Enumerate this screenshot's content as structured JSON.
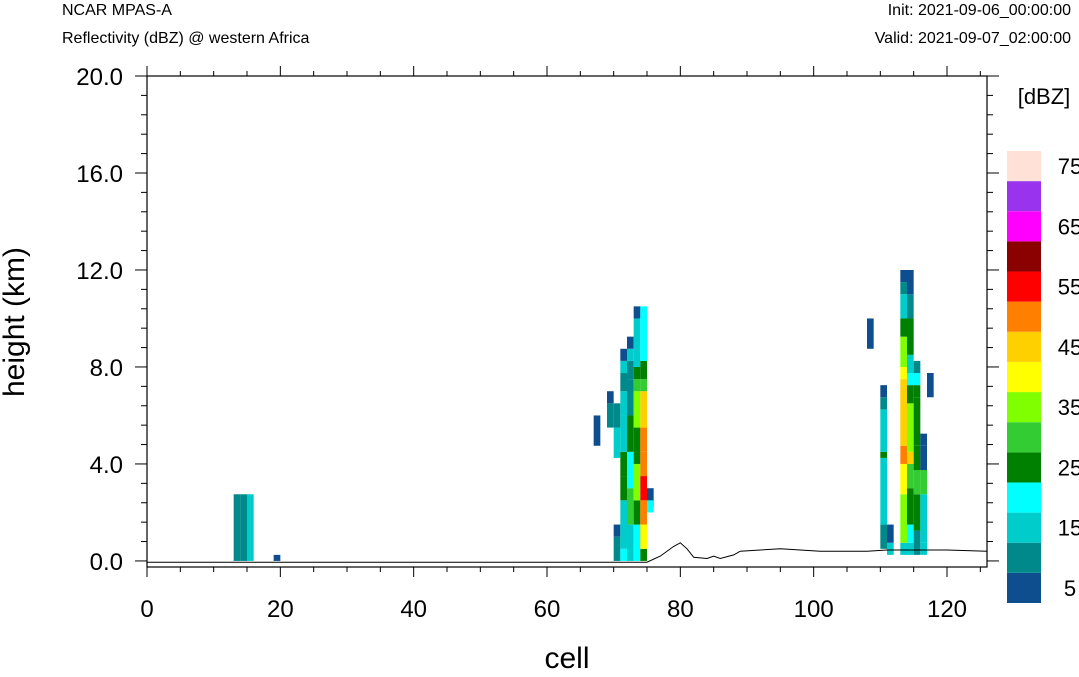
{
  "header": {
    "model": "NCAR MPAS-A",
    "field": "Reflectivity (dBZ) @ western Africa",
    "init": "Init: 2021-09-06_00:00:00",
    "valid": "Valid: 2021-09-07_02:00:00"
  },
  "chart_data": {
    "type": "heatmap",
    "xlabel": "cell",
    "ylabel": "height (km)",
    "xlim": [
      0,
      126
    ],
    "ylim": [
      -0.25,
      20.0
    ],
    "x_ticks": [
      "0",
      "20",
      "40",
      "60",
      "80",
      "100",
      "120"
    ],
    "y_ticks": [
      "0.0",
      "4.0",
      "8.0",
      "12.0",
      "16.0",
      "20.0"
    ],
    "colorbar": {
      "title": "[dBZ]",
      "levels": [
        5,
        10,
        15,
        20,
        25,
        30,
        35,
        40,
        45,
        50,
        55,
        60,
        65,
        70,
        75
      ],
      "labels": [
        "5",
        "15",
        "25",
        "35",
        "45",
        "55",
        "65",
        "75"
      ],
      "colors": [
        "#0e4e8e",
        "#00898a",
        "#00cccc",
        "#00ffff",
        "#008000",
        "#33cc33",
        "#80ff00",
        "#ffff00",
        "#ffd000",
        "#ff8000",
        "#ff0000",
        "#8b0000",
        "#ff00ff",
        "#9933ee",
        "#ffe1d8"
      ]
    },
    "columns": [
      {
        "x": 13,
        "cells": [
          [
            0,
            2.75,
            10
          ]
        ]
      },
      {
        "x": 14,
        "cells": [
          [
            0,
            2.75,
            10
          ]
        ]
      },
      {
        "x": 15,
        "cells": [
          [
            0,
            2.75,
            15
          ]
        ]
      },
      {
        "x": 19,
        "cells": [
          [
            0,
            0.25,
            5
          ]
        ]
      },
      {
        "x": 67,
        "cells": [
          [
            4.75,
            6.0,
            5
          ]
        ]
      },
      {
        "x": 69,
        "cells": [
          [
            5.5,
            6.5,
            10
          ],
          [
            6.5,
            7.0,
            5
          ]
        ]
      },
      {
        "x": 70,
        "cells": [
          [
            0,
            1.0,
            10
          ],
          [
            1.0,
            1.5,
            5
          ],
          [
            4.25,
            5.5,
            15
          ],
          [
            5.5,
            6.5,
            10
          ]
        ]
      },
      {
        "x": 71,
        "cells": [
          [
            0,
            0.5,
            20
          ],
          [
            0.5,
            2.5,
            15
          ],
          [
            2.5,
            3.5,
            25
          ],
          [
            3.5,
            4.5,
            25
          ],
          [
            4.5,
            6.0,
            15
          ],
          [
            6.0,
            7.0,
            15
          ],
          [
            7.0,
            7.75,
            10
          ],
          [
            7.75,
            8.25,
            15
          ],
          [
            8.25,
            8.75,
            5
          ]
        ]
      },
      {
        "x": 72,
        "cells": [
          [
            0,
            1.5,
            15
          ],
          [
            1.5,
            3.0,
            30
          ],
          [
            3.0,
            4.5,
            20
          ],
          [
            4.5,
            6.0,
            25
          ],
          [
            6.0,
            7.5,
            10
          ],
          [
            7.5,
            8.25,
            10
          ],
          [
            8.25,
            8.75,
            15
          ],
          [
            8.75,
            9.25,
            5
          ]
        ]
      },
      {
        "x": 73,
        "cells": [
          [
            0,
            1.5,
            20
          ],
          [
            1.5,
            2.5,
            25
          ],
          [
            2.5,
            4.0,
            35
          ],
          [
            4.0,
            5.5,
            25
          ],
          [
            5.5,
            7.0,
            35
          ],
          [
            7.0,
            7.5,
            30
          ],
          [
            7.5,
            8.0,
            25
          ],
          [
            8.0,
            10.0,
            15
          ],
          [
            10.0,
            10.5,
            5
          ]
        ]
      },
      {
        "x": 74,
        "cells": [
          [
            0,
            0.5,
            25
          ],
          [
            0.5,
            1.5,
            40
          ],
          [
            1.5,
            2.5,
            50
          ],
          [
            2.5,
            3.5,
            55
          ],
          [
            3.5,
            4.5,
            50
          ],
          [
            4.5,
            5.5,
            50
          ],
          [
            5.5,
            7.0,
            45
          ],
          [
            7.0,
            7.5,
            30
          ],
          [
            7.5,
            8.25,
            25
          ],
          [
            8.25,
            10.5,
            20
          ]
        ]
      },
      {
        "x": 75,
        "cells": [
          [
            2.25,
            3.0,
            5
          ],
          [
            2.0,
            2.5,
            20
          ]
        ]
      },
      {
        "x": 108,
        "cells": [
          [
            8.75,
            10.0,
            5
          ]
        ]
      },
      {
        "x": 110,
        "cells": [
          [
            0.5,
            1.5,
            10
          ],
          [
            1.5,
            4.25,
            15
          ],
          [
            4.25,
            4.5,
            25
          ],
          [
            4.5,
            6.25,
            15
          ],
          [
            6.25,
            6.75,
            10
          ],
          [
            6.75,
            7.25,
            5
          ]
        ]
      },
      {
        "x": 111,
        "cells": [
          [
            0.25,
            0.75,
            15
          ],
          [
            0.75,
            1.5,
            5
          ]
        ]
      },
      {
        "x": 113,
        "cells": [
          [
            0.25,
            0.75,
            15
          ],
          [
            0.75,
            2.75,
            35
          ],
          [
            2.75,
            4.0,
            40
          ],
          [
            4.0,
            4.75,
            50
          ],
          [
            4.75,
            7.5,
            45
          ],
          [
            7.5,
            8.0,
            40
          ],
          [
            8.0,
            9.25,
            35
          ],
          [
            9.25,
            10.0,
            25
          ],
          [
            10.0,
            11.0,
            15
          ],
          [
            11.0,
            11.5,
            10
          ],
          [
            11.5,
            12.0,
            5
          ]
        ]
      },
      {
        "x": 114,
        "cells": [
          [
            0.25,
            0.75,
            15
          ],
          [
            0.75,
            1.5,
            20
          ],
          [
            1.5,
            3.0,
            25
          ],
          [
            3.0,
            4.0,
            30
          ],
          [
            4.0,
            4.5,
            45
          ],
          [
            4.5,
            6.5,
            35
          ],
          [
            6.5,
            7.25,
            25
          ],
          [
            7.25,
            7.75,
            20
          ],
          [
            7.75,
            8.5,
            15
          ],
          [
            8.5,
            10.0,
            25
          ],
          [
            10.0,
            11.0,
            10
          ],
          [
            11.0,
            12.0,
            5
          ]
        ]
      },
      {
        "x": 115,
        "cells": [
          [
            0.25,
            1.25,
            10
          ],
          [
            1.25,
            2.75,
            25
          ],
          [
            2.75,
            3.75,
            30
          ],
          [
            3.75,
            4.75,
            25
          ],
          [
            4.75,
            6.75,
            25
          ],
          [
            6.75,
            7.25,
            25
          ],
          [
            7.25,
            7.75,
            20
          ],
          [
            7.75,
            8.25,
            10
          ]
        ]
      },
      {
        "x": 116,
        "cells": [
          [
            0.25,
            0.75,
            15
          ],
          [
            0.75,
            2.75,
            15
          ],
          [
            2.75,
            3.75,
            30
          ],
          [
            3.75,
            4.75,
            5
          ],
          [
            4.75,
            5.25,
            5
          ]
        ]
      },
      {
        "x": 117,
        "cells": [
          [
            6.75,
            7.75,
            5
          ]
        ]
      }
    ],
    "terrain": [
      [
        0,
        -0.05
      ],
      [
        70,
        -0.05
      ],
      [
        75,
        -0.05
      ],
      [
        77,
        0.2
      ],
      [
        79,
        0.6
      ],
      [
        80,
        0.75
      ],
      [
        81,
        0.5
      ],
      [
        82,
        0.15
      ],
      [
        84,
        0.1
      ],
      [
        85,
        0.2
      ],
      [
        86,
        0.1
      ],
      [
        88,
        0.25
      ],
      [
        89,
        0.4
      ],
      [
        92,
        0.45
      ],
      [
        95,
        0.5
      ],
      [
        98,
        0.45
      ],
      [
        101,
        0.4
      ],
      [
        104,
        0.4
      ],
      [
        108,
        0.4
      ],
      [
        111,
        0.45
      ],
      [
        113,
        0.45
      ],
      [
        116,
        0.45
      ],
      [
        120,
        0.45
      ],
      [
        126,
        0.4
      ]
    ]
  }
}
